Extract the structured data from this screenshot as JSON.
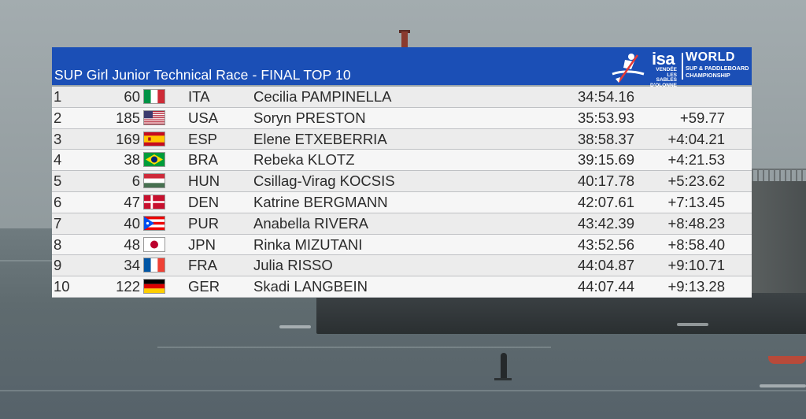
{
  "board": {
    "title": "SUP Girl Junior Technical Race - FINAL TOP 10"
  },
  "logo": {
    "isa": "isa",
    "sub": "VENDÉE LES SABLES D'OLONNE",
    "world": "WORLD",
    "champ_line1": "SUP & PADDLEBOARD",
    "champ_line2": "CHAMPIONSHIP"
  },
  "results": [
    {
      "rank": "1",
      "bib": "60",
      "nat": "ITA",
      "flag": "ita",
      "name": "Cecilia PAMPINELLA",
      "time": "34:54.16",
      "gap": ""
    },
    {
      "rank": "2",
      "bib": "185",
      "nat": "USA",
      "flag": "usa",
      "name": "Soryn PRESTON",
      "time": "35:53.93",
      "gap": "+59.77"
    },
    {
      "rank": "3",
      "bib": "169",
      "nat": "ESP",
      "flag": "esp",
      "name": "Elene ETXEBERRIA",
      "time": "38:58.37",
      "gap": "+4:04.21"
    },
    {
      "rank": "4",
      "bib": "38",
      "nat": "BRA",
      "flag": "bra",
      "name": "Rebeka KLOTZ",
      "time": "39:15.69",
      "gap": "+4:21.53"
    },
    {
      "rank": "5",
      "bib": "6",
      "nat": "HUN",
      "flag": "hun",
      "name": "Csillag-Virag KOCSIS",
      "time": "40:17.78",
      "gap": "+5:23.62"
    },
    {
      "rank": "6",
      "bib": "47",
      "nat": "DEN",
      "flag": "den",
      "name": "Katrine BERGMANN",
      "time": "42:07.61",
      "gap": "+7:13.45"
    },
    {
      "rank": "7",
      "bib": "40",
      "nat": "PUR",
      "flag": "pur",
      "name": "Anabella RIVERA",
      "time": "43:42.39",
      "gap": "+8:48.23"
    },
    {
      "rank": "8",
      "bib": "48",
      "nat": "JPN",
      "flag": "jpn",
      "name": "Rinka MIZUTANI",
      "time": "43:52.56",
      "gap": "+8:58.40"
    },
    {
      "rank": "9",
      "bib": "34",
      "nat": "FRA",
      "flag": "fra",
      "name": "Julia RISSO",
      "time": "44:04.87",
      "gap": "+9:10.71"
    },
    {
      "rank": "10",
      "bib": "122",
      "nat": "GER",
      "flag": "ger",
      "name": "Skadi LANGBEIN",
      "time": "44:07.44",
      "gap": "+9:13.28"
    }
  ],
  "colors": {
    "header_bg": "#1b4fb6",
    "row_bg": "#ececec",
    "text": "#2b2b2b"
  }
}
